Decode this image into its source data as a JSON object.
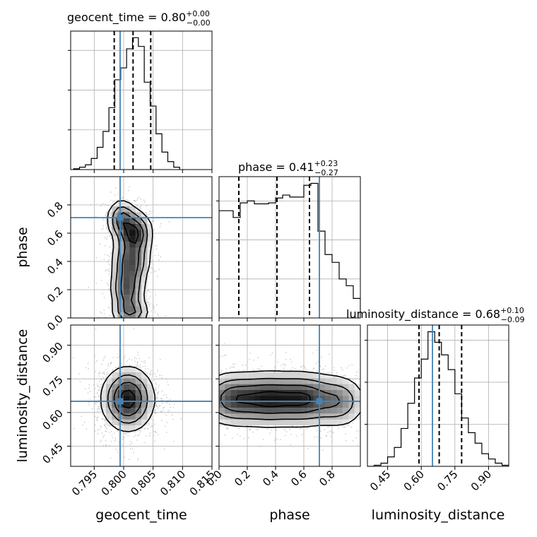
{
  "chart_data": {
    "type": "corner",
    "parameters": [
      "geocent_time",
      "phase",
      "luminosity_distance"
    ],
    "truths": {
      "geocent_time": 0.7994,
      "phase": 0.71,
      "luminosity_distance": 0.65
    },
    "colors": {
      "truth": "#4682b4",
      "hist": "#000000",
      "grid": "#b0b0b0",
      "points": "#9a9a9a"
    },
    "titles": [
      {
        "name": "geocent_time",
        "median": "0.80",
        "plus": "+0.00",
        "minus": "−0.00"
      },
      {
        "name": "phase",
        "median": "0.41",
        "plus": "+0.23",
        "minus": "−0.27"
      },
      {
        "name": "luminosity_distance",
        "median": "0.68",
        "plus": "+0.10",
        "minus": "−0.09"
      }
    ],
    "ranges": {
      "geocent_time": [
        0.791,
        0.815
      ],
      "phase": [
        0.0,
        1.0
      ],
      "luminosity_distance": [
        0.36,
        0.99
      ]
    },
    "ticks": {
      "geocent_time": [
        0.795,
        0.8,
        0.805,
        0.81,
        0.815
      ],
      "phase": [
        0.0,
        0.2,
        0.4,
        0.6,
        0.8
      ],
      "luminosity_distance": [
        0.45,
        0.6,
        0.75,
        0.9
      ]
    },
    "tick_labels": {
      "geocent_time": [
        "0.795",
        "0.800",
        "0.805",
        "0.810",
        "0.815"
      ],
      "phase": [
        "0.0",
        "0.2",
        "0.4",
        "0.6",
        "0.8"
      ],
      "luminosity_distance": [
        "0.45",
        "0.60",
        "0.75",
        "0.90"
      ]
    },
    "quantiles": {
      "geocent_time": [
        0.7984,
        0.8016,
        0.8046
      ],
      "phase": [
        0.14,
        0.41,
        0.64
      ],
      "luminosity_distance": [
        0.59,
        0.68,
        0.78
      ]
    },
    "histograms": {
      "geocent_time": {
        "edges": [
          0.7915,
          0.7925,
          0.7935,
          0.7945,
          0.7955,
          0.7965,
          0.7975,
          0.7985,
          0.7995,
          0.8005,
          0.8015,
          0.8025,
          0.8035,
          0.8045,
          0.8055,
          0.8065,
          0.8075,
          0.8085,
          0.8095
        ],
        "counts": [
          1,
          3,
          6,
          14,
          28,
          48,
          78,
          113,
          128,
          152,
          166,
          155,
          110,
          80,
          45,
          22,
          10,
          3
        ]
      },
      "phase": {
        "edges": [
          0.0,
          0.05,
          0.1,
          0.15,
          0.2,
          0.25,
          0.3,
          0.35,
          0.4,
          0.45,
          0.5,
          0.55,
          0.6,
          0.65,
          0.7,
          0.75,
          0.8,
          0.85,
          0.9,
          0.95,
          1.0
        ],
        "counts": [
          110,
          110,
          103,
          118,
          120,
          117,
          117,
          118,
          123,
          126,
          124,
          124,
          136,
          138,
          89,
          65,
          57,
          40,
          33,
          20
        ]
      },
      "luminosity_distance": {
        "edges": [
          0.36,
          0.39,
          0.42,
          0.45,
          0.48,
          0.51,
          0.54,
          0.57,
          0.6,
          0.63,
          0.66,
          0.69,
          0.72,
          0.75,
          0.78,
          0.81,
          0.84,
          0.87,
          0.9,
          0.93,
          0.96,
          0.99
        ],
        "counts": [
          0,
          1,
          3,
          9,
          18,
          36,
          60,
          84,
          102,
          128,
          118,
          106,
          92,
          69,
          46,
          32,
          22,
          12,
          7,
          3,
          1
        ]
      }
    },
    "joint_2d": [
      {
        "x": "geocent_time",
        "y": "phase",
        "cores": [
          {
            "cx": 0.7996,
            "cy": 0.7,
            "sx": 0.0012,
            "sy": 0.07,
            "w": 0.7
          },
          {
            "cx": 0.8018,
            "cy": 0.6,
            "sx": 0.0015,
            "sy": 0.08,
            "w": 1.0
          },
          {
            "cx": 0.8012,
            "cy": 0.4,
            "sx": 0.0016,
            "sy": 0.09,
            "w": 0.8
          },
          {
            "cx": 0.8006,
            "cy": 0.2,
            "sx": 0.0014,
            "sy": 0.09,
            "w": 0.8
          },
          {
            "cx": 0.8012,
            "cy": 0.04,
            "sx": 0.0016,
            "sy": 0.05,
            "w": 0.6
          }
        ]
      },
      {
        "x": "geocent_time",
        "y": "luminosity_distance",
        "cores": [
          {
            "cx": 0.8007,
            "cy": 0.66,
            "sx": 0.0022,
            "sy": 0.07,
            "w": 1.0
          }
        ]
      },
      {
        "x": "phase",
        "y": "luminosity_distance",
        "cores": [
          {
            "cx": 0.1,
            "cy": 0.66,
            "sx": 0.12,
            "sy": 0.06,
            "w": 0.9
          },
          {
            "cx": 0.35,
            "cy": 0.66,
            "sx": 0.12,
            "sy": 0.06,
            "w": 1.0
          },
          {
            "cx": 0.6,
            "cy": 0.66,
            "sx": 0.12,
            "sy": 0.06,
            "w": 1.0
          },
          {
            "cx": 0.85,
            "cy": 0.65,
            "sx": 0.1,
            "sy": 0.06,
            "w": 0.6
          }
        ]
      }
    ]
  }
}
